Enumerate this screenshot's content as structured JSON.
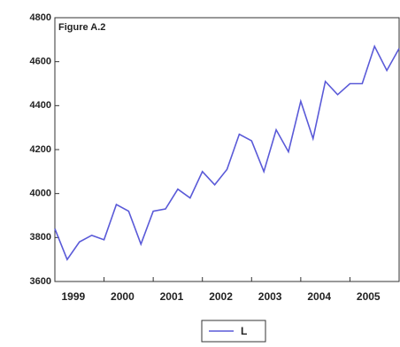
{
  "chart_data": {
    "type": "line",
    "title": "Figure A.2",
    "categories": [
      null,
      "1999",
      null,
      null,
      null,
      "2000",
      null,
      null,
      null,
      "2001",
      null,
      null,
      null,
      "2002",
      null,
      null,
      null,
      "2003",
      null,
      null,
      null,
      "2004",
      null,
      null,
      null,
      "2005",
      null,
      null,
      null
    ],
    "series": [
      {
        "name": "L",
        "color": "#5a5ad8",
        "values": [
          3840,
          3700,
          3780,
          3810,
          3790,
          3950,
          3920,
          3770,
          3920,
          3930,
          4020,
          3980,
          4100,
          4040,
          4110,
          4270,
          4240,
          4100,
          4290,
          4190,
          4420,
          4250,
          4510,
          4450,
          4500,
          4500,
          4670,
          4560,
          4660
        ]
      }
    ],
    "ylim": [
      3600,
      4800
    ],
    "yticks": [
      3600,
      3800,
      4000,
      4200,
      4400,
      4600,
      4800
    ]
  }
}
